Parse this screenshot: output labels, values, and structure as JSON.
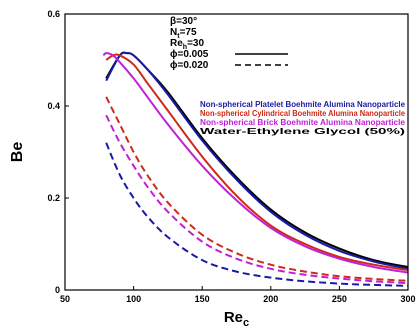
{
  "chart_data": {
    "type": "line",
    "xlabel": "Re",
    "xlabel_sub": "c",
    "ylabel": "Be",
    "xlim": [
      50,
      300
    ],
    "ylim": [
      0,
      0.6
    ],
    "xticks": [
      50,
      100,
      150,
      200,
      250,
      300
    ],
    "yticks": [
      0,
      0.2,
      0.4,
      0.6
    ],
    "parameters": [
      {
        "text": "β=30°"
      },
      {
        "text": "N",
        "sub": "t",
        "rest": "=75"
      },
      {
        "text": "Re",
        "sub": "h",
        "rest": "=30"
      },
      {
        "text": "ϕ=0.005",
        "line_style": "solid"
      },
      {
        "text": "ϕ=0.020",
        "line_style": "dashed"
      }
    ],
    "legend_entries": [
      {
        "label": "Non-spherical Platelet Boehmite Alumina Nanoparticle",
        "color": "#1a1aa6"
      },
      {
        "label": "Non-spherical Cylindrical Boehmite Alumina Nanoparticle",
        "color": "#cc2a1a"
      },
      {
        "label": "Non-spherical Brick Boehmite Alumina Nanoparticle",
        "color": "#c21fd6"
      },
      {
        "label": "Water-Ethylene Glycol (50%)",
        "color": "#000000"
      }
    ],
    "series": [
      {
        "color": "#000000",
        "dash": false,
        "x": [
          80,
          90,
          95,
          100,
          110,
          125,
          150,
          175,
          200,
          225,
          250,
          275,
          300
        ],
        "y": [
          0.46,
          0.51,
          0.515,
          0.51,
          0.48,
          0.43,
          0.33,
          0.245,
          0.175,
          0.125,
          0.09,
          0.065,
          0.05
        ]
      },
      {
        "color": "#1a1aa6",
        "dash": false,
        "x": [
          80,
          90,
          95,
          100,
          110,
          125,
          150,
          175,
          200,
          225,
          250,
          275,
          300
        ],
        "y": [
          0.455,
          0.51,
          0.515,
          0.51,
          0.48,
          0.425,
          0.325,
          0.24,
          0.17,
          0.12,
          0.085,
          0.062,
          0.046
        ]
      },
      {
        "color": "#cc2a1a",
        "dash": false,
        "x": [
          80,
          85,
          90,
          100,
          110,
          125,
          150,
          175,
          200,
          225,
          250,
          275,
          300
        ],
        "y": [
          0.5,
          0.51,
          0.51,
          0.49,
          0.45,
          0.39,
          0.29,
          0.205,
          0.14,
          0.1,
          0.072,
          0.055,
          0.043
        ]
      },
      {
        "color": "#c21fd6",
        "dash": false,
        "x": [
          78,
          80,
          85,
          90,
          100,
          110,
          125,
          150,
          175,
          200,
          225,
          250,
          275,
          300
        ],
        "y": [
          0.51,
          0.515,
          0.51,
          0.495,
          0.46,
          0.42,
          0.36,
          0.27,
          0.195,
          0.135,
          0.095,
          0.068,
          0.05,
          0.038
        ]
      },
      {
        "color": "#cc2a1a",
        "dash": true,
        "x": [
          80,
          90,
          100,
          110,
          125,
          150,
          175,
          200,
          225,
          250,
          275,
          300
        ],
        "y": [
          0.42,
          0.36,
          0.3,
          0.25,
          0.19,
          0.12,
          0.08,
          0.055,
          0.04,
          0.03,
          0.024,
          0.02
        ]
      },
      {
        "color": "#c21fd6",
        "dash": true,
        "x": [
          80,
          90,
          100,
          110,
          125,
          150,
          175,
          200,
          225,
          250,
          275,
          300
        ],
        "y": [
          0.38,
          0.32,
          0.27,
          0.225,
          0.17,
          0.105,
          0.068,
          0.046,
          0.033,
          0.025,
          0.019,
          0.015
        ]
      },
      {
        "color": "#1a1aa6",
        "dash": true,
        "x": [
          80,
          90,
          100,
          110,
          125,
          150,
          175,
          200,
          225,
          250,
          275,
          300
        ],
        "y": [
          0.32,
          0.25,
          0.2,
          0.16,
          0.115,
          0.065,
          0.04,
          0.027,
          0.019,
          0.014,
          0.011,
          0.009
        ]
      }
    ]
  }
}
